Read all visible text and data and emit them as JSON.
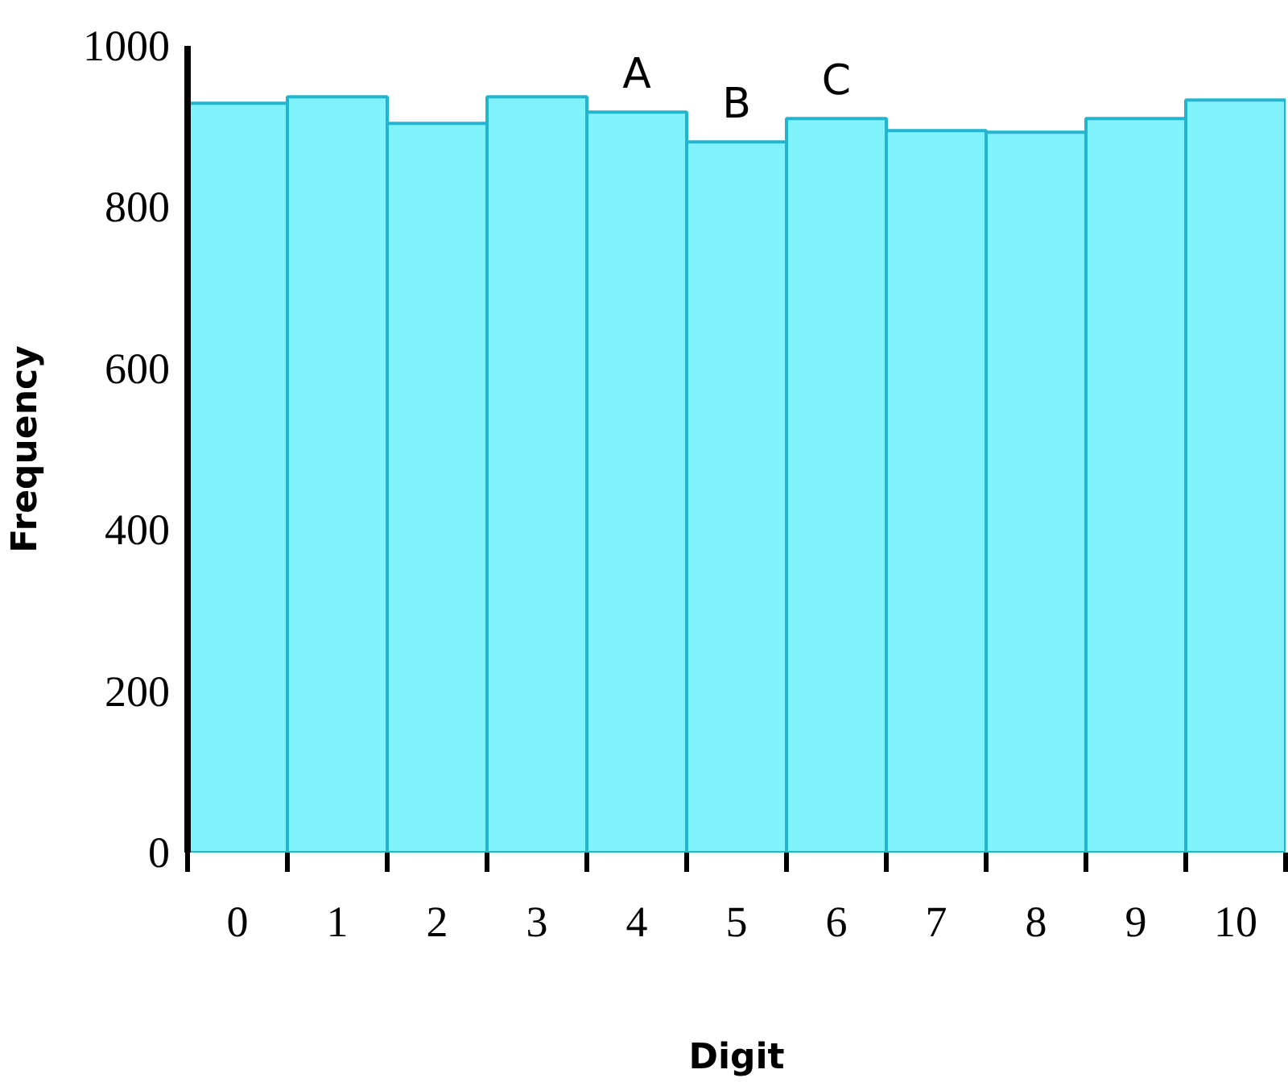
{
  "chart_data": {
    "type": "bar",
    "xlabel": "Digit",
    "ylabel": "Frequency",
    "categories": [
      "0",
      "1",
      "2",
      "3",
      "4",
      "5",
      "6",
      "7",
      "8",
      "9",
      "10"
    ],
    "series": [
      {
        "color": "#80f3fd",
        "values": [
          929,
          937,
          904,
          937,
          918,
          881,
          910,
          895,
          893,
          910,
          933
        ]
      }
    ],
    "ylim": [
      0,
      1000
    ],
    "yticks": [
      0,
      200,
      400,
      600,
      800,
      1000
    ],
    "grid": false,
    "annotations": [
      {
        "text": "A",
        "x": "4",
        "y": 918
      },
      {
        "text": "B",
        "x": "5",
        "y": 881
      },
      {
        "text": "C",
        "x": "6",
        "y": 910
      }
    ]
  }
}
